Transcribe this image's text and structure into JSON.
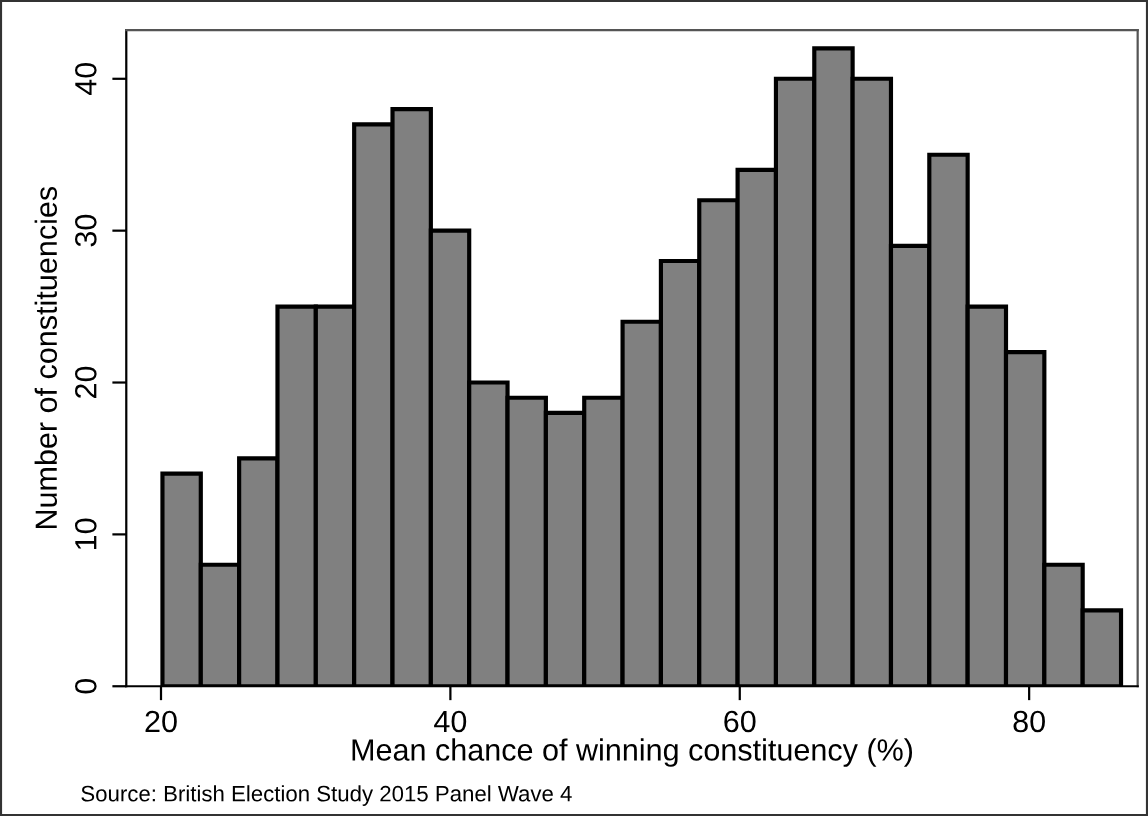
{
  "chart_data": {
    "type": "histogram",
    "xlabel": "Mean chance of winning constituency (%)",
    "ylabel": "Number of constituencies",
    "annotations": [
      "Source: British Election Study 2015 Panel Wave 4"
    ],
    "bins": [
      20.1,
      22.75,
      25.4,
      28.05,
      30.7,
      33.35,
      36.0,
      38.65,
      41.3,
      43.95,
      46.6,
      49.25,
      51.9,
      54.55,
      57.2,
      59.85,
      62.5,
      65.15,
      67.8,
      70.45,
      73.1,
      75.75,
      78.4,
      81.05,
      83.7,
      86.35
    ],
    "values": [
      14,
      8,
      15,
      25,
      25,
      37,
      38,
      30,
      20,
      19,
      18,
      19,
      24,
      28,
      32,
      34,
      40,
      42,
      40,
      29,
      35,
      25,
      22,
      8,
      5
    ],
    "color": "#808080",
    "xlim": [
      17.6,
      87.5
    ],
    "ylim": [
      0,
      43.2
    ],
    "xticks": [
      20,
      40,
      60,
      80
    ],
    "yticks": [
      0,
      10,
      20,
      30,
      40
    ],
    "grid": false
  }
}
